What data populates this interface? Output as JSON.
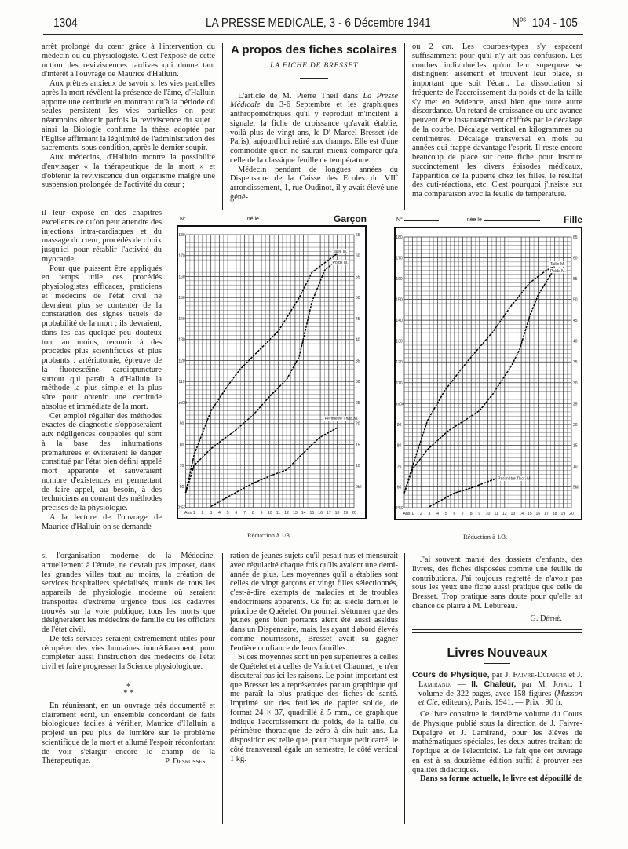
{
  "header": {
    "page_number": "1304",
    "title": "LA PRESSE MEDICALE, 3 - 6 Décembre 1941",
    "issue_prefix": "N",
    "issue_sup": "os",
    "issue_number": "104 - 105"
  },
  "col1": {
    "block_a": [
      "arrêt prolongé du cœur grâce à l'intervention du médecin ou du physiologiste. C'est l'exposé de cette notion des reviviscences tardives qui donne tant d'intérêt à l'ouvrage de Maurice d'Halluin.",
      "Aux prêtres anxieux de savoir si les vies partielles après la mort révèlent la présence de l'âme, d'Halluin apporte une certitude en montrant qu'à la période où seules persistent les vies partielles on peut néanmoins obtenir parfois la reviviscence du sujet ; ainsi la Biologie confirme la thèse adoptée par l'Eglise affirmant la légitimité de l'administration des sacrements, sous condition, après le dernier soupir.",
      "Aux médecins, d'Halluin montre la possibilité d'envisager « la thérapeutique de la mort » et d'obtenir la reviviscence d'un organisme malgré une suspension prolongée de l'activité du cœur ;"
    ],
    "block_b": [
      "il leur expose en des chapitres excellents ce qu'on peut attendre des injections intra-cardiaques et du massage du cœur, procédés de choix jusqu'ici pour rétablir l'activité du myocarde.",
      "Pour que puissent être appliqués en temps utile ces procédés physiologistes efficaces, praticiens et médecins de l'état civil ne devraient plus se contenter de la constatation des signes usuels de probabilité de la mort ; ils devraient, dans les cas quelque peu douteux tout au moins, recourir à des procédés plus scientifiques et plus probants : artériotomie, épreuve de la fluorescéine, cardiopuncture surtout qui paraît à d'Halluin la méthode la plus simple et la plus sûre pour obtenir une certitude absolue et immédiate de la mort.",
      "Cet emploi régulier des méthodes exactes de diagnostic s'opposeraient aux négligences coupables qui sont à la base des inhumations prématurées et éviteraient le danger constitué par l'état bien défini appelé mort apparente et sauveraient nombre d'existences en permettant de faire appel, au besoin, à des techniciens au courant des méthodes précises de la physiologie.",
      "A la lecture de l'ouvrage de Maurice d'Halluin on se demande"
    ],
    "block_c": [
      "si l'organisation moderne de la Médecine, actuellement à l'étude, ne devrait pas imposer, dans les grandes villes tout au moins, la création de services hospitaliers spécialisés, munis de tous les appareils de physiologie moderne où seraient transportés d'extrême urgence tous les cadavres trouvés sur la voie publique, tous les morts que désigneraient les médecins de famille ou les officiers de l'état civil.",
      "De tels services seraient extrêmement utiles pour récupérer des vies humaines immédiatement, pour compléter aussi l'instruction des médecins de l'état civil et faire progresser la Science physiologique."
    ],
    "stars_top": "*",
    "stars_bottom": "* *",
    "closing": "En réunissant, en un ouvrage très documenté et clairement écrit, un ensemble concordant de faits biologiques faciles à vérifier, Maurice d'Halluin a projeté un peu plus de lumière sur le problème scientifique de la mort et allumé l'espoir réconfortant de voir s'élargir encore le champ de la Thérapeutique.",
    "signature": "P. Desrosses."
  },
  "article": {
    "title": "A propos des fiches scolaires",
    "subtitle": "LA FICHE DE BRESSET",
    "p1": {
      "a": "L'article de M. Pierre Theil dans ",
      "b_italic": "La Presse Médicale",
      "c": " du 3-6 Septembre et les graphiques anthropométriques qu'il y reproduit m'incitent à signaler la fiche de croissance qu'avait établie, voilà plus de vingt ans, le D",
      "d_sup": "r",
      "e": " Marcel Bresset (de Paris), aujourd'hui retiré aux champs. Elle est d'une commodité qu'on ne saurait mieux comparer qu'à celle de la classique feuille de température."
    },
    "p2": {
      "a": "Médecin pendant de longues années du Dispensaire de la Caisse des Ecoles du VII",
      "b_sup": "e",
      "c": " arrondissement, 1, rue Oudinot, il y avait élevé une géné-"
    },
    "col2_bottom": [
      "ration de jeunes sujets qu'il pesait nus et mensurait avec régularité chaque fois qu'ils avaient une demi-année de plus. Les moyennes qu'il a établies sont celles de vingt garçons et vingt filles sélectionnés, c'est-à-dire exempts de maladies et de troubles endocriniens apparents. Ce fut au siècle dernier le principe de Quételet. On pourrait s'étonner que des jeunes gens bien portants aient été aussi assidus dans un Dispensaire, mais, les ayant d'abord élevés comme nourrissons, Bresset avait su gagner l'entière confiance de leurs familles.",
      "Si ces moyennes sont un peu supérieures à celles de Quételet et à celles de Variot et Chaumet, je n'en discuterai pas ici les raisons. Le point important est que Bresset les a représentées par un graphique qui me paraît la plus pratique des fiches de santé. Imprimé sur des feuilles de papier solide, de format 24 × 37, quadrillé à 5 mm., ce graphique indique l'accroissement du poids, de la taille, du périmètre thoracique de zéro à dix-huit ans. La disposition est telle que, pour chaque petit carré, le côté transversal égale un semestre, le côté vertical 1 kg."
    ],
    "col3_top": {
      "a": "ou 2 ",
      "b_italic": "cm",
      "c": ". Les courbes-types s'y espacent suffisamment pour qu'il n'y ait pas confusion. Les courbes individuelles qu'on leur superpose se distinguent aisément et trouvent leur place, si important que soit l'écart. La dissociation si fréquente de l'accroissement du poids et de la taille s'y met en évidence, aussi bien que toute autre discordance. Un retard de croissance ou une avance peuvent être instantanément chiffrés par le décalage de la courbe. Décalage vertical en kilogrammes ou centimètres. Décalage transversal en mois ou années qui frappe davantage l'esprit. Il reste encore beaucoup de place sur cette fiche pour inscrire succinctement les divers épisodes médicaux, l'apparition de la puberté chez les filles, le résultat des cuti-réactions, etc. C'est pourquoi j'insiste sur ma comparaison avec la feuille de température."
    },
    "col3_bottom": "J'ai souvent manié des dossiers d'enfants, des livrets, des fiches disposées comme une feuille de contributions. J'ai toujours regretté de n'avoir pas sous les yeux une fiche aussi pratique que celle de Bresset. Trop pratique sans doute pour qu'elle ait chance de plaire à M. Lebureau.",
    "signature": "G. Déthé."
  },
  "books": {
    "title": "Livres Nouveaux",
    "entry": {
      "t1": "Cours de Physique,",
      "t2": " par J. ",
      "t3": "Faivre-Dupaigre",
      "t4": " et J. ",
      "t5": "Lamirand",
      "t6": ". — ",
      "t7": "II. Chaleur,",
      "t8": " par M. ",
      "t9": "Joyal",
      "t10": ". 1 volume de 322 pages, avec 158 figures (",
      "t11": "Masson et Cie",
      "t12": ", éditeurs), Paris, 1941. — Prix : 90 fr."
    },
    "paragraphs": [
      "Ce livre constitue le deuxième volume du Cours de Physique publié sous la direction de J. Faivre-Dupaigre et J. Lamirand, pour les élèves de mathématiques spéciales, les deux autres traitant de l'optique et de l'électricité. Le fait que cet ouvrage en est à sa douzième édition suffit à prouver ses qualités didactiques.",
      "Dans sa forme actuelle, le livre est dépouillé de"
    ]
  },
  "chart_data": [
    {
      "type": "line",
      "number_label": "N°",
      "born_label": "né le",
      "sex_label": "Garçon",
      "caption": "Réduction à 1/3.",
      "xlim": [
        0,
        20
      ],
      "x_ticks": [
        "Ans",
        "1",
        "2",
        "3",
        "4",
        "5",
        "6",
        "7",
        "8",
        "9",
        "10",
        "11",
        "12",
        "13",
        "14",
        "15",
        "16",
        "17",
        "18",
        "19",
        "20"
      ],
      "left_axis": {
        "range": [
          50,
          180
        ],
        "ticks": [
          "180",
          "170",
          "160",
          "150",
          "140",
          "130",
          "120",
          "110",
          "1m00",
          "90",
          "80",
          "70",
          "60",
          "0°50"
        ]
      },
      "right_axis": {
        "range": [
          5,
          65
        ],
        "ticks": [
          "65",
          "60",
          "55",
          "50",
          "45",
          "40",
          "35",
          "30",
          "25",
          "20",
          "15",
          "10",
          "5kil"
        ]
      },
      "grid": true,
      "series": [
        {
          "name": "Taille M.",
          "axis": "left",
          "x": [
            0,
            1,
            3,
            5,
            6.5,
            8,
            11,
            13.5,
            15,
            16,
            18
          ],
          "y": [
            57,
            75,
            96,
            108,
            116,
            122,
            134,
            150,
            162,
            165,
            171
          ]
        },
        {
          "name": "Poids M.",
          "axis": "right",
          "x": [
            0,
            1,
            3,
            6,
            8,
            10,
            12,
            13.5,
            15,
            16.5,
            18
          ],
          "y": [
            3.5,
            10,
            14,
            18.5,
            22,
            26.5,
            30.5,
            36,
            49,
            56.5,
            59
          ]
        },
        {
          "name": "Périmètre Thor. M.",
          "axis": "left",
          "x": [
            3,
            5,
            8,
            10,
            12,
            13,
            15,
            16,
            18
          ],
          "y": [
            50.5,
            55,
            61.5,
            65,
            68,
            72,
            80,
            83.5,
            88
          ]
        }
      ]
    },
    {
      "type": "line",
      "number_label": "N°",
      "born_label": "née le",
      "sex_label": "Fille",
      "caption": "Réduction à 1/3.",
      "xlim": [
        0,
        20
      ],
      "x_ticks": [
        "Ans",
        "1",
        "2",
        "3",
        "4",
        "5",
        "6",
        "7",
        "8",
        "9",
        "10",
        "11",
        "12",
        "13",
        "14",
        "15",
        "16",
        "17",
        "18",
        "19",
        "20"
      ],
      "left_axis": {
        "range": [
          50,
          180
        ],
        "ticks": [
          "180",
          "170",
          "160",
          "150",
          "140",
          "130",
          "120",
          "110",
          "1m00",
          "90",
          "80",
          "70",
          "60",
          "0°50"
        ]
      },
      "right_axis": {
        "range": [
          5,
          65
        ],
        "ticks": [
          "65",
          "60",
          "55",
          "50",
          "45",
          "40",
          "35",
          "30",
          "25",
          "20",
          "15",
          "10",
          "5kil"
        ]
      },
      "grid": true,
      "series": [
        {
          "name": "Taille M.",
          "axis": "left",
          "x": [
            0,
            1,
            2.8,
            4.8,
            7.5,
            10.6,
            12.8,
            15,
            17,
            18
          ],
          "y": [
            57,
            70,
            92,
            106,
            120,
            134.5,
            147,
            158,
            164,
            166
          ]
        },
        {
          "name": "Poids M.",
          "axis": "right",
          "x": [
            0,
            1,
            2.8,
            5.3,
            7.8,
            9,
            10.6,
            12.8,
            13.8,
            15,
            16,
            18
          ],
          "y": [
            3.5,
            9.3,
            14,
            18.5,
            21.7,
            23.3,
            27.3,
            34,
            38,
            46,
            51,
            57.5
          ]
        },
        {
          "name": "Périmètre Thor. M.",
          "axis": "left",
          "x": [
            3,
            6,
            8,
            11
          ],
          "y": [
            50.5,
            57,
            59.5,
            64
          ]
        }
      ]
    }
  ]
}
